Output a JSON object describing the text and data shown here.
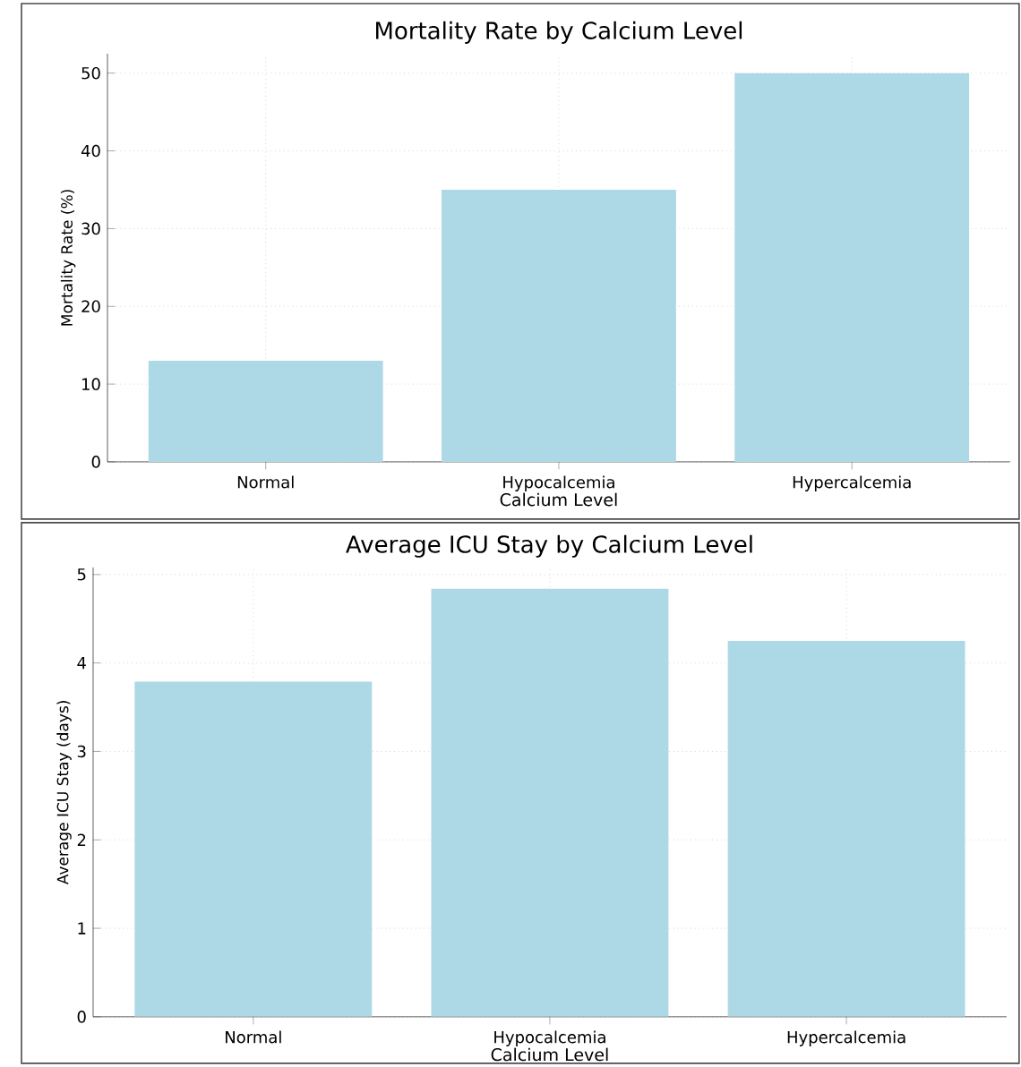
{
  "chart_data": [
    {
      "type": "bar",
      "title": "Mortality Rate by Calcium Level",
      "xlabel": "Calcium Level",
      "ylabel": "Mortality Rate (%)",
      "categories": [
        "Normal",
        "Hypocalcemia",
        "Hypercalcemia"
      ],
      "values": [
        13,
        35,
        50
      ],
      "color": "#add8e6",
      "ylim": [
        0,
        52.5
      ],
      "yticks": [
        0,
        10,
        20,
        30,
        40,
        50
      ],
      "grid": true
    },
    {
      "type": "bar",
      "title": "Average ICU Stay by Calcium Level",
      "xlabel": "Calcium Level",
      "ylabel": "Average ICU Stay (days)",
      "categories": [
        "Normal",
        "Hypocalcemia",
        "Hypercalcemia"
      ],
      "values": [
        3.79,
        4.84,
        4.25
      ],
      "color": "#add8e6",
      "ylim": [
        0,
        5.08
      ],
      "yticks": [
        0,
        1,
        2,
        3,
        4,
        5
      ],
      "grid": true
    }
  ]
}
